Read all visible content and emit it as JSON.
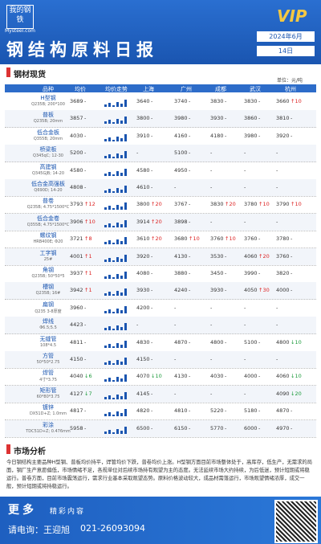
{
  "header": {
    "logo": "我的钢铁",
    "logo_sub": "Mysteel.com",
    "badge": "VIP",
    "title": "钢结构原料日报",
    "month": "2024年6月",
    "day": "14日"
  },
  "section1": {
    "title": "钢材现货",
    "unit": "单位：元/吨"
  },
  "table": {
    "columns": [
      "品种",
      "均价",
      "均价走势",
      "上海",
      "广州",
      "成都",
      "武汉",
      "杭州"
    ],
    "rows": [
      {
        "name": "H型钢",
        "spec": "Q235B; 200*100",
        "avg": [
          "3689",
          "-"
        ],
        "prices": [
          [
            "3640",
            "-"
          ],
          [
            "3740",
            "-"
          ],
          [
            "3830",
            "-"
          ],
          [
            "3830",
            "-"
          ],
          [
            "3660",
            "↑10"
          ]
        ]
      },
      {
        "name": "普板",
        "spec": "Q235B; 20mm",
        "avg": [
          "3857",
          "-"
        ],
        "prices": [
          [
            "3800",
            "-"
          ],
          [
            "3980",
            "-"
          ],
          [
            "3930",
            "-"
          ],
          [
            "3860",
            "-"
          ],
          [
            "3810",
            "-"
          ]
        ]
      },
      {
        "name": "低合金板",
        "spec": "Q355B; 20mm",
        "avg": [
          "4030",
          "-"
        ],
        "prices": [
          [
            "3910",
            "-"
          ],
          [
            "4160",
            "-"
          ],
          [
            "4180",
            "-"
          ],
          [
            "3980",
            "-"
          ],
          [
            "3920",
            "-"
          ]
        ]
      },
      {
        "name": "桥梁板",
        "spec": "Q345qC; 12-30",
        "avg": [
          "5200",
          "-"
        ],
        "prices": [
          [
            "-"
          ],
          [
            "5100",
            "-"
          ],
          [
            "-"
          ],
          [
            "-"
          ],
          [
            "-"
          ]
        ]
      },
      {
        "name": "高建钢",
        "spec": "Q345GJB; 14-20",
        "avg": [
          "4580",
          "-"
        ],
        "prices": [
          [
            "4580",
            "-"
          ],
          [
            "4950",
            "-"
          ],
          [
            "-"
          ],
          [
            "-"
          ],
          [
            "-"
          ]
        ]
      },
      {
        "name": "低合金高强板",
        "spec": "Q690D; 14-20",
        "avg": [
          "4808",
          "-"
        ],
        "prices": [
          [
            "4610",
            "-"
          ],
          [
            "-"
          ],
          [
            "-"
          ],
          [
            "-"
          ],
          [
            "-"
          ]
        ]
      },
      {
        "name": "普卷",
        "spec": "Q235B; 4.75*1500*C",
        "avg": [
          "3793",
          "↑12"
        ],
        "prices": [
          [
            "3800",
            "↑20"
          ],
          [
            "3767",
            "-"
          ],
          [
            "3830",
            "↑20"
          ],
          [
            "3780",
            "↑10"
          ],
          [
            "3790",
            "↑10"
          ]
        ]
      },
      {
        "name": "低合金卷",
        "spec": "Q355B; 4.75*1500*C",
        "avg": [
          "3906",
          "↑10"
        ],
        "prices": [
          [
            "3914",
            "↑20"
          ],
          [
            "3898",
            "-"
          ],
          [
            "-"
          ],
          [
            "-"
          ],
          [
            "-"
          ]
        ]
      },
      {
        "name": "螺纹钢",
        "spec": "HRB400E; Φ20",
        "avg": [
          "3721",
          "↑8"
        ],
        "prices": [
          [
            "3610",
            "↑20"
          ],
          [
            "3680",
            "↑10"
          ],
          [
            "3760",
            "↑10"
          ],
          [
            "3760",
            "-"
          ],
          [
            "3780",
            "-"
          ]
        ]
      },
      {
        "name": "工字钢",
        "spec": "25#",
        "avg": [
          "4001",
          "↑1"
        ],
        "prices": [
          [
            "3920",
            "-"
          ],
          [
            "4130",
            "-"
          ],
          [
            "3530",
            "-"
          ],
          [
            "4060",
            "↑20"
          ],
          [
            "3760",
            "-"
          ]
        ]
      },
      {
        "name": "角钢",
        "spec": "Q235B; 50*50*5",
        "avg": [
          "3937",
          "↑1"
        ],
        "prices": [
          [
            "4080",
            "-"
          ],
          [
            "3880",
            "-"
          ],
          [
            "3450",
            "-"
          ],
          [
            "3990",
            "-"
          ],
          [
            "3820",
            "-"
          ]
        ]
      },
      {
        "name": "槽钢",
        "spec": "Q235B; 16#",
        "avg": [
          "3942",
          "↑1"
        ],
        "prices": [
          [
            "3930",
            "-"
          ],
          [
            "4240",
            "-"
          ],
          [
            "3930",
            "-"
          ],
          [
            "4050",
            "↑30"
          ],
          [
            "4000",
            "-"
          ]
        ]
      },
      {
        "name": "扁钢",
        "spec": "Q235 3-8厚度",
        "avg": [
          "3960",
          "-"
        ],
        "prices": [
          [
            "4200",
            "-"
          ],
          [
            "-"
          ],
          [
            "-"
          ],
          [
            "-"
          ],
          [
            "-"
          ]
        ]
      },
      {
        "name": "焊线",
        "spec": "Φ6.5;5.5",
        "avg": [
          "4423",
          "-"
        ],
        "prices": [
          [
            "-"
          ],
          [
            "-"
          ],
          [
            "-"
          ],
          [
            "-"
          ],
          [
            "-"
          ]
        ]
      },
      {
        "name": "无缝管",
        "spec": "108*4.5",
        "avg": [
          "4811",
          "-"
        ],
        "prices": [
          [
            "4830",
            "-"
          ],
          [
            "4870",
            "-"
          ],
          [
            "4800",
            "-"
          ],
          [
            "5100",
            "-"
          ],
          [
            "4800",
            "↓10"
          ]
        ]
      },
      {
        "name": "方管",
        "spec": "50*50*2.75",
        "avg": [
          "4150",
          "-"
        ],
        "prices": [
          [
            "4150",
            "-"
          ],
          [
            "-"
          ],
          [
            "-"
          ],
          [
            "-"
          ],
          [
            "-"
          ]
        ]
      },
      {
        "name": "焊管",
        "spec": "4寸*3.75",
        "avg": [
          "4040",
          "↓6"
        ],
        "prices": [
          [
            "4070",
            "↓10"
          ],
          [
            "4130",
            "-"
          ],
          [
            "4030",
            "-"
          ],
          [
            "4000",
            "-"
          ],
          [
            "4060",
            "↓10"
          ]
        ]
      },
      {
        "name": "矩形管",
        "spec": "60*80*3.75",
        "avg": [
          "4127",
          "↓7"
        ],
        "prices": [
          [
            "4145",
            "-"
          ],
          [
            "-"
          ],
          [
            "-"
          ],
          [
            "-"
          ],
          [
            "4090",
            "↓20"
          ]
        ]
      },
      {
        "name": "镀锌",
        "spec": "DX51D+Z; 1.0mm",
        "avg": [
          "4817",
          "-"
        ],
        "prices": [
          [
            "4820",
            "-"
          ],
          [
            "4810",
            "-"
          ],
          [
            "5220",
            "-"
          ],
          [
            "5180",
            "-"
          ],
          [
            "4870",
            "-"
          ]
        ]
      },
      {
        "name": "彩涂",
        "spec": "TDC51D+Z; 0.476mm",
        "avg": [
          "5958",
          "-"
        ],
        "prices": [
          [
            "6500",
            "-"
          ],
          [
            "6150",
            "-"
          ],
          [
            "5770",
            "-"
          ],
          [
            "6000",
            "-"
          ],
          [
            "4970",
            "-"
          ]
        ]
      }
    ]
  },
  "section2": {
    "title": "市场分析",
    "text": "今日钢结构主要品种H型钢、普板均价持平，焊管均价下跌，普卷均价上涨。H型钢方面目前市场整体处于，高库存，低生产，无需求的局面，钢厂生产意愿偏低，市场情绪不足，各规单位对后续市场持有观望为主的态度。无法延续市场大约持续，为后低迷，预计短期或将稳运行。普卷方面，目前市场震荡运行，需求行业基本采取观望态势。原料价格波动较大，成品材需落运行，市场观望情绪浓厚，成交一般，预计短期或将持稳运行。"
  },
  "footer": {
    "more": "更多",
    "more_sub": "精彩内容",
    "contact": "请电询：王迎旭",
    "phone": "021-26093094"
  }
}
